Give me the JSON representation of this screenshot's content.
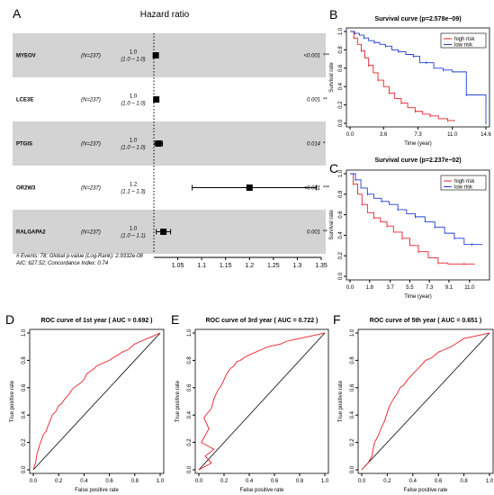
{
  "panels": {
    "A": "A",
    "B": "B",
    "C": "C",
    "D": "D",
    "E": "E",
    "F": "F"
  },
  "forest": {
    "title": "Hazard ratio",
    "xticks": [
      "1.05",
      "1.1",
      "1.15",
      "1.2",
      "1.25",
      "1.3",
      "1.35"
    ],
    "footer1": "# Events: 78; Global p-value (Log-Rank): 2.9332e-08",
    "footer2": "AIC: 627.52; Concordance Index: 0.74",
    "rows": [
      {
        "gene": "MYEOV",
        "n": "(N=237)",
        "hr": "1.0",
        "ci": "(1.0 – 1.0)",
        "p": "<0.001",
        "stars": "***",
        "est": 1.004,
        "lo": 1.001,
        "hi": 1.007
      },
      {
        "gene": "LCE3E",
        "n": "(N=237)",
        "hr": "1.0",
        "ci": "(1.0 – 1.0)",
        "p": "0.001",
        "stars": "**",
        "est": 1.005,
        "lo": 1.001,
        "hi": 1.008
      },
      {
        "gene": "PTGIS",
        "n": "(N=237)",
        "hr": "1.0",
        "ci": "(1.0 – 1.0)",
        "p": "0.014",
        "stars": "*",
        "est": 1.01,
        "lo": 1.002,
        "hi": 1.018
      },
      {
        "gene": "OR2W3",
        "n": "(N=237)",
        "hr": "1.2",
        "ci": "(1.1 – 1.3)",
        "p": "<0.001",
        "stars": "***",
        "est": 1.2,
        "lo": 1.08,
        "hi": 1.34
      },
      {
        "gene": "RALGAPA2",
        "n": "(N=237)",
        "hr": "1.0",
        "ci": "(1.0 – 1.1)",
        "p": "0.001",
        "stars": "**",
        "est": 1.02,
        "lo": 1.005,
        "hi": 1.035
      }
    ]
  },
  "chart_data": [
    {
      "type": "line",
      "title": "Survival curve (p=2.578e−09)",
      "xlabel": "Time (year)",
      "ylabel": "Survival rate",
      "xticks": [
        "0.0",
        "3.6",
        "7.3",
        "11.0",
        "14.6"
      ],
      "yticks": [
        "0.0",
        "0.2",
        "0.4",
        "0.6",
        "0.8",
        "1.0"
      ],
      "xlim": [
        0,
        14.6
      ],
      "ylim": [
        0,
        1
      ],
      "legend": "top-right",
      "series": [
        {
          "name": "high risk",
          "color": "#e8202a",
          "x": [
            0,
            0.4,
            0.8,
            1.2,
            1.6,
            2.0,
            2.5,
            3.0,
            3.6,
            4.2,
            4.8,
            5.5,
            6.2,
            7.0,
            7.8,
            8.6,
            9.5,
            10.5,
            11.2
          ],
          "y": [
            1.0,
            0.93,
            0.86,
            0.79,
            0.71,
            0.63,
            0.55,
            0.47,
            0.4,
            0.33,
            0.27,
            0.22,
            0.17,
            0.13,
            0.1,
            0.08,
            0.05,
            0.03,
            0.02
          ]
        },
        {
          "name": "low risk",
          "color": "#1f3cd0",
          "x": [
            0,
            0.5,
            1.0,
            1.5,
            2.0,
            2.6,
            3.2,
            3.8,
            4.5,
            5.2,
            6.0,
            6.8,
            7.5,
            8.2,
            9.0,
            10.0,
            11.0,
            12.5,
            14.0,
            14.6
          ],
          "y": [
            1.0,
            0.98,
            0.96,
            0.93,
            0.9,
            0.88,
            0.86,
            0.84,
            0.8,
            0.78,
            0.75,
            0.73,
            0.66,
            0.66,
            0.6,
            0.58,
            0.56,
            0.31,
            0.31,
            0.0
          ]
        }
      ]
    },
    {
      "type": "line",
      "title": "Survival curve (p=2.237e−02)",
      "xlabel": "Time (year)",
      "ylabel": "Survival rate",
      "xticks": [
        "0.0",
        "1.8",
        "3.7",
        "5.5",
        "7.3",
        "9.1",
        "11.0"
      ],
      "yticks": [
        "0.0",
        "0.2",
        "0.4",
        "0.6",
        "0.8",
        "1.0"
      ],
      "xlim": [
        0,
        12.5
      ],
      "ylim": [
        0,
        1
      ],
      "legend": "top-right",
      "series": [
        {
          "name": "high risk",
          "color": "#e8202a",
          "x": [
            0,
            0.3,
            0.7,
            1.1,
            1.6,
            2.2,
            2.8,
            3.4,
            4.0,
            4.8,
            5.5,
            6.3,
            7.2,
            8.1,
            9.0,
            10.5,
            11.5
          ],
          "y": [
            1.0,
            0.9,
            0.8,
            0.7,
            0.62,
            0.57,
            0.53,
            0.49,
            0.43,
            0.37,
            0.3,
            0.24,
            0.18,
            0.13,
            0.12,
            0.12,
            0.12
          ]
        },
        {
          "name": "low risk",
          "color": "#1f3cd0",
          "x": [
            0,
            0.5,
            1.0,
            1.6,
            2.2,
            2.9,
            3.6,
            4.4,
            5.2,
            6.0,
            6.9,
            7.8,
            8.7,
            9.6,
            10.5,
            11.2,
            12.2
          ],
          "y": [
            1.0,
            0.94,
            0.86,
            0.8,
            0.76,
            0.73,
            0.7,
            0.65,
            0.61,
            0.58,
            0.53,
            0.48,
            0.42,
            0.37,
            0.31,
            0.31,
            0.31
          ]
        }
      ]
    },
    {
      "type": "line",
      "title": "ROC curve of 1st year ( AUC = 0.692 )",
      "xlabel": "False positive rate",
      "ylabel": "True positive rate",
      "xticks": [
        "0.0",
        "0.2",
        "0.4",
        "0.6",
        "0.8",
        "1.0"
      ],
      "yticks": [
        "0.0",
        "0.2",
        "0.4",
        "0.6",
        "0.8",
        "1.0"
      ],
      "xlim": [
        0,
        1
      ],
      "ylim": [
        0,
        1
      ],
      "series": [
        {
          "name": "",
          "color": "#e8202a",
          "x": [
            0,
            0.02,
            0.03,
            0.05,
            0.08,
            0.1,
            0.12,
            0.15,
            0.18,
            0.2,
            0.22,
            0.25,
            0.28,
            0.3,
            0.32,
            0.35,
            0.38,
            0.4,
            0.42,
            0.45,
            0.48,
            0.5,
            0.55,
            0.6,
            0.63,
            0.67,
            0.7,
            0.75,
            0.8,
            0.85,
            0.9,
            0.95,
            1.0
          ],
          "y": [
            0,
            0.06,
            0.12,
            0.18,
            0.26,
            0.28,
            0.33,
            0.4,
            0.43,
            0.47,
            0.48,
            0.52,
            0.55,
            0.58,
            0.6,
            0.62,
            0.64,
            0.66,
            0.7,
            0.72,
            0.74,
            0.76,
            0.78,
            0.8,
            0.82,
            0.84,
            0.86,
            0.88,
            0.92,
            0.94,
            0.96,
            0.98,
            1.0
          ]
        }
      ]
    },
    {
      "type": "line",
      "title": "ROC curve of 3rd year ( AUC = 0.722 )",
      "xlabel": "False positive rate",
      "ylabel": "True positive rate",
      "xticks": [
        "0.0",
        "0.2",
        "0.4",
        "0.6",
        "0.8",
        "1.0"
      ],
      "yticks": [
        "0.0",
        "0.2",
        "0.4",
        "0.6",
        "0.8",
        "1.0"
      ],
      "xlim": [
        0,
        1
      ],
      "ylim": [
        0,
        1
      ],
      "series": [
        {
          "name": "",
          "color": "#e8202a",
          "x": [
            0,
            0.1,
            0.05,
            0.12,
            0.02,
            0.08,
            0.04,
            0.1,
            0.12,
            0.15,
            0.18,
            0.2,
            0.22,
            0.25,
            0.28,
            0.3,
            0.33,
            0.36,
            0.4,
            0.45,
            0.5,
            0.55,
            0.6,
            0.65,
            0.7,
            0.75,
            0.8,
            0.85,
            0.9,
            0.95,
            1.0
          ],
          "y": [
            0,
            0.05,
            0.1,
            0.15,
            0.2,
            0.3,
            0.38,
            0.45,
            0.52,
            0.58,
            0.62,
            0.66,
            0.7,
            0.74,
            0.76,
            0.79,
            0.8,
            0.82,
            0.84,
            0.86,
            0.88,
            0.9,
            0.91,
            0.92,
            0.94,
            0.95,
            0.96,
            0.97,
            0.98,
            0.99,
            1.0
          ]
        }
      ]
    },
    {
      "type": "line",
      "title": "ROC curve of 5th year ( AUC = 0.651 )",
      "xlabel": "False positive rate",
      "ylabel": "True positive rate",
      "xticks": [
        "0.0",
        "0.2",
        "0.4",
        "0.6",
        "0.8",
        "1.0"
      ],
      "yticks": [
        "0.0",
        "0.2",
        "0.4",
        "0.6",
        "0.8",
        "1.0"
      ],
      "xlim": [
        0,
        1
      ],
      "ylim": [
        0,
        1
      ],
      "series": [
        {
          "name": "",
          "color": "#e8202a",
          "x": [
            0,
            0.05,
            0.08,
            0.1,
            0.13,
            0.15,
            0.18,
            0.2,
            0.22,
            0.25,
            0.28,
            0.3,
            0.33,
            0.36,
            0.4,
            0.44,
            0.48,
            0.5,
            0.55,
            0.6,
            0.65,
            0.7,
            0.75,
            0.8,
            0.85,
            0.9,
            0.95,
            1.0
          ],
          "y": [
            0,
            0.05,
            0.1,
            0.2,
            0.25,
            0.3,
            0.36,
            0.42,
            0.47,
            0.52,
            0.56,
            0.6,
            0.62,
            0.66,
            0.7,
            0.74,
            0.78,
            0.8,
            0.82,
            0.86,
            0.88,
            0.9,
            0.93,
            0.96,
            0.97,
            0.98,
            0.99,
            1.0
          ]
        }
      ]
    }
  ]
}
